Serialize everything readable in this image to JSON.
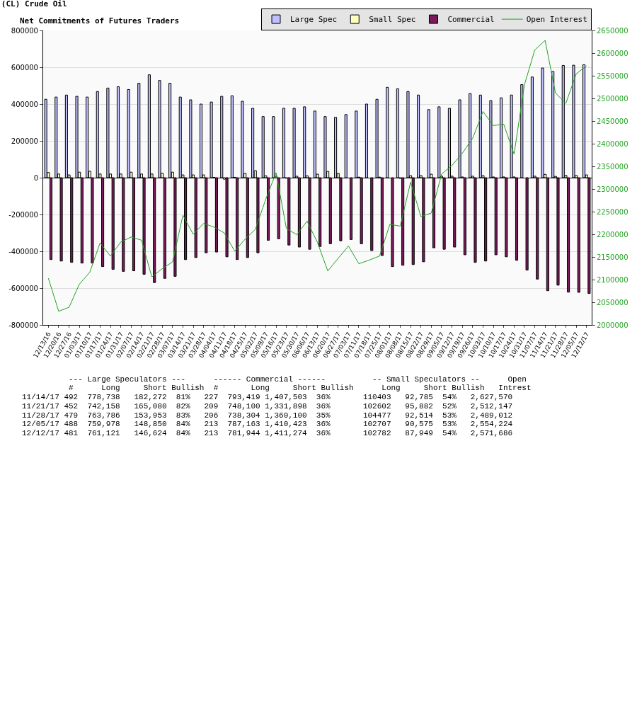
{
  "chart_data": {
    "type": "bar",
    "title": "(CL) Crude Oil",
    "subtitle": "Net Commitments of Futures Traders",
    "categories": [
      "12/13/16",
      "12/20/16",
      "12/27/16",
      "01/03/17",
      "01/10/17",
      "01/17/17",
      "01/24/17",
      "01/31/17",
      "02/07/17",
      "02/14/17",
      "02/21/17",
      "02/28/17",
      "03/07/17",
      "03/14/17",
      "03/21/17",
      "03/28/17",
      "04/04/17",
      "04/11/17",
      "04/18/17",
      "04/25/17",
      "05/02/17",
      "05/09/17",
      "05/16/17",
      "05/23/17",
      "05/30/17",
      "06/06/17",
      "06/13/17",
      "06/20/17",
      "06/27/17",
      "07/03/17",
      "07/11/17",
      "07/18/17",
      "07/25/17",
      "08/01/17",
      "08/08/17",
      "08/15/17",
      "08/22/17",
      "08/29/17",
      "09/05/17",
      "09/12/17",
      "09/19/17",
      "09/26/17",
      "10/03/17",
      "10/10/17",
      "10/17/17",
      "10/24/17",
      "10/31/17",
      "11/07/17",
      "11/14/17",
      "11/21/17",
      "11/28/17",
      "12/05/17",
      "12/12/17"
    ],
    "series": [
      {
        "name": "Large Spec",
        "color": "#c0c0ff",
        "values": [
          426000,
          438000,
          449000,
          442000,
          438000,
          468000,
          487000,
          494000,
          479000,
          513000,
          559000,
          528000,
          513000,
          438000,
          423000,
          400000,
          411000,
          442000,
          445000,
          415000,
          377000,
          332000,
          332000,
          377000,
          377000,
          385000,
          362000,
          332000,
          328000,
          343000,
          362000,
          400000,
          426000,
          491000,
          483000,
          468000,
          449000,
          370000,
          385000,
          377000,
          423000,
          457000,
          449000,
          419000,
          434000,
          449000,
          506000,
          547000,
          596000,
          577000,
          610000,
          611000,
          614000
        ]
      },
      {
        "name": "Small Spec",
        "color": "#ffffc0",
        "values": [
          28000,
          20000,
          15000,
          30000,
          35000,
          20000,
          20000,
          20000,
          30000,
          20000,
          20000,
          24000,
          30000,
          15000,
          15000,
          15000,
          2000,
          -8000,
          2000,
          23000,
          38000,
          10000,
          8000,
          -3000,
          8000,
          10000,
          19000,
          34000,
          23000,
          null,
          3000,
          null,
          3000,
          null,
          -4000,
          11000,
          11000,
          19000,
          8000,
          8000,
          4000,
          8000,
          11000,
          4000,
          4000,
          4000,
          null,
          8000,
          18000,
          7000,
          12000,
          12000,
          15000
        ]
      },
      {
        "name": "Commercial",
        "color": "#7a1a5a",
        "values": [
          -445000,
          -453000,
          -460000,
          -464000,
          -464000,
          -483000,
          -498000,
          -509000,
          -506000,
          -525000,
          -570000,
          -547000,
          -536000,
          -445000,
          -434000,
          -408000,
          -404000,
          -430000,
          -445000,
          -434000,
          -408000,
          -340000,
          -332000,
          -366000,
          -377000,
          -389000,
          -374000,
          -359000,
          -343000,
          -336000,
          -359000,
          -396000,
          -423000,
          -483000,
          -476000,
          -472000,
          -457000,
          -381000,
          -389000,
          -377000,
          -419000,
          -460000,
          -453000,
          -419000,
          -430000,
          -449000,
          -502000,
          -551000,
          -614000,
          -584000,
          -622000,
          -623000,
          -629000
        ]
      },
      {
        "name": "Open Interest",
        "type": "line",
        "axis": "y2",
        "color": "#22a022",
        "values": [
          2103000,
          2030000,
          2039000,
          2090000,
          2116000,
          2181000,
          2152000,
          2183000,
          2194000,
          2187000,
          2106000,
          2124000,
          2139000,
          2242000,
          2200000,
          2224000,
          2216000,
          2203000,
          2163000,
          2189000,
          2211000,
          2277000,
          2336000,
          2213000,
          2199000,
          2229000,
          2182000,
          2119000,
          2147000,
          2174000,
          2135000,
          2143000,
          2152000,
          2222000,
          2218000,
          2315000,
          2239000,
          2247000,
          2333000,
          2352000,
          2379000,
          2412000,
          2471000,
          2440000,
          2443000,
          2377000,
          2530000,
          2607000,
          2628000,
          2512000,
          2489000,
          2554000,
          2572000
        ]
      }
    ],
    "ylim": [
      -800000,
      800000
    ],
    "yticks": [
      -800000,
      -600000,
      -400000,
      -200000,
      0,
      200000,
      400000,
      600000,
      800000
    ],
    "y2lim": [
      2000000,
      2650000
    ],
    "y2ticks": [
      2000000,
      2050000,
      2100000,
      2150000,
      2200000,
      2250000,
      2300000,
      2350000,
      2400000,
      2450000,
      2500000,
      2550000,
      2600000,
      2650000
    ],
    "grid": "y",
    "legend": "top right",
    "marker": "none",
    "annotations": [
      "          --- Large Speculators ---      ------ Commercial ------          -- Small Speculators --      Open",
      "          #      Long     Short Bullish  #       Long     Short Bullish      Long     Short Bullish   Intrest",
      "11/14/17 492  778,738   182,272  81%   227  793,419 1,407,503  36%       110403   92,785  54%   2,627,570",
      "11/21/17 452  742,158   165,080  82%   209  748,100 1,331,898  36%       102602   95,882  52%   2,512,147",
      "11/28/17 479  763,786   153,953  83%   206  738,304 1,360,100  35%       104477   92,514  53%   2,489,012",
      "12/05/17 488  759,978   148,850  84%   213  787,163 1,410,423  36%       102707   90,575  53%   2,554,224",
      "12/12/17 481  761,121   146,624  84%   213  781,944 1,411,274  36%       102782   87,949  54%   2,571,686"
    ]
  }
}
